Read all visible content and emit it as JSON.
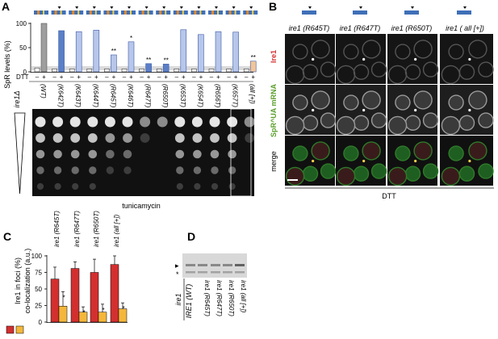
{
  "panels": {
    "A": {
      "letter": "A",
      "ylabel": "SpR levels (%)",
      "ticks": [
        "100",
        "50",
        "0"
      ],
      "dtt_label": "DTT",
      "row_label": "ire1Δ",
      "strain_labels": [
        "(WT)",
        "(K642T)",
        "(K643T)",
        "(K644T)",
        "(R645T)",
        "(K646T)",
        "(R647T)",
        "(R650T)",
        "(K653T)",
        "(K654T)",
        "(R656T)",
        "(K657T)",
        "(all [+])"
      ],
      "xlabel": "tunicamycin",
      "dtt_minus": "–",
      "dtt_plus": "+"
    },
    "B": {
      "letter": "B",
      "col_labels": [
        "ire1 (R645T)",
        "ire1 (R647T)",
        "ire1 (R650T)",
        "ire1 ( all [+])"
      ],
      "row_labels": [
        "Ire1",
        "SpR^UA mRNA",
        "merge"
      ],
      "xlabel": "DTT"
    },
    "C": {
      "letter": "C",
      "ylabel1": "Ire1 in foci (%)",
      "ylabel2": "co-localization (a.u.)",
      "ticks": [
        "100",
        "75",
        "50",
        "25",
        "0"
      ],
      "xlabels": [
        "ire1 (R645T)",
        "ire1 (R647T)",
        "ire1 (R650T)",
        "ire1 (all [+])"
      ],
      "star": "*"
    },
    "D": {
      "letter": "D",
      "arrow": "▸",
      "star": "*",
      "label1": "ire1",
      "label2": "IRE1 (WT)",
      "lanes": [
        "ire1 (R645T)",
        "ire1 (R647T)",
        "ire1 (R650T)",
        "ire1 (all [+])"
      ]
    }
  },
  "chart_data": [
    {
      "type": "bar",
      "panel": "A",
      "ylabel": "SpR levels (%)",
      "ylim": [
        0,
        100
      ],
      "categories": [
        "(WT)",
        "(K642T)",
        "(K643T)",
        "(K644T)",
        "(R645T)",
        "(K646T)",
        "(R647T)",
        "(R650T)",
        "(K653T)",
        "(K654T)",
        "(R656T)",
        "(K657T)",
        "(all [+])"
      ],
      "series": [
        {
          "name": "–",
          "values": [
            8,
            6,
            6,
            6,
            6,
            6,
            6,
            6,
            6,
            6,
            6,
            6,
            6
          ]
        },
        {
          "name": "+",
          "values": [
            100,
            85,
            83,
            86,
            35,
            62,
            17,
            16,
            87,
            77,
            83,
            82,
            22
          ]
        }
      ],
      "annotations": [
        "**",
        "*",
        "**",
        "**",
        "**"
      ]
    },
    {
      "type": "bar",
      "panel": "C",
      "ylim": [
        0,
        100
      ],
      "categories": [
        "ire1 (R645T)",
        "ire1 (R647T)",
        "ire1 (R650T)",
        "ire1 (all [+])"
      ],
      "series": [
        {
          "name": "Ire1 in foci (%)",
          "values": [
            65,
            81,
            75,
            87
          ],
          "errors": [
            18,
            10,
            20,
            13
          ],
          "color": "#d32f2f"
        },
        {
          "name": "co-localization (a.u.)",
          "values": [
            24,
            15,
            15,
            20
          ],
          "errors": [
            22,
            8,
            12,
            9
          ],
          "color": "#f4b73b"
        }
      ]
    }
  ]
}
